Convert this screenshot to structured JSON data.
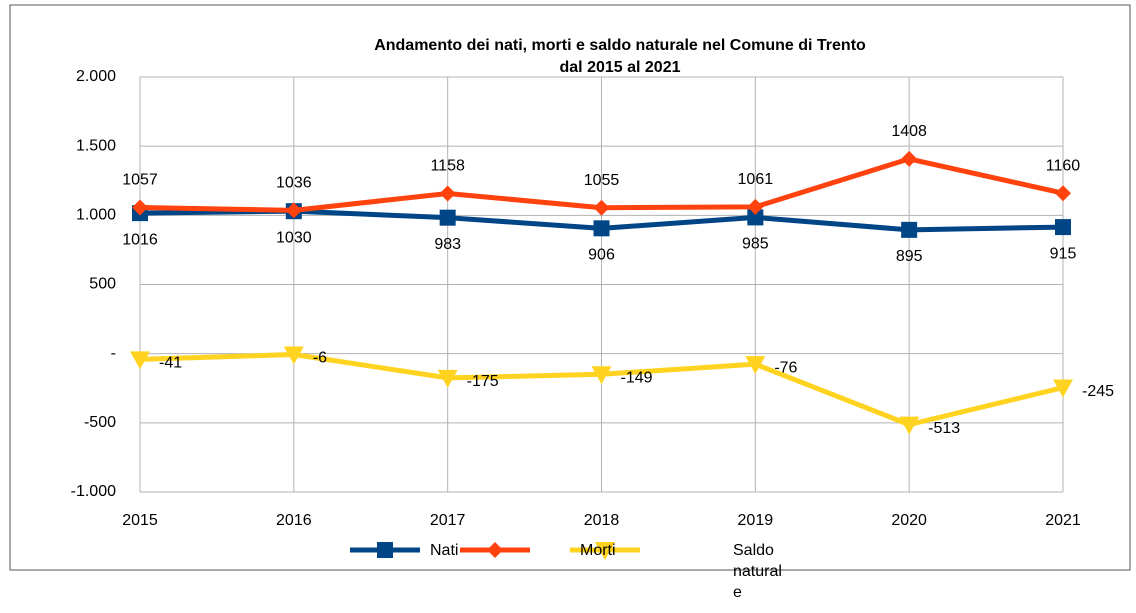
{
  "chart_data": {
    "type": "line",
    "title": [
      "Andamento dei nati, morti e saldo naturale nel Comune di Trento",
      "dal 2015 al 2021"
    ],
    "categories": [
      "2015",
      "2016",
      "2017",
      "2018",
      "2019",
      "2020",
      "2021"
    ],
    "series": [
      {
        "name": "Nati",
        "color": "#004586",
        "marker": "square",
        "label_position": "below",
        "values": [
          1016,
          1030,
          983,
          906,
          985,
          895,
          915
        ]
      },
      {
        "name": "Morti",
        "color": "#ff420e",
        "marker": "diamond",
        "label_position": "above",
        "values": [
          1057,
          1036,
          1158,
          1055,
          1061,
          1408,
          1160
        ]
      },
      {
        "name": "Saldo naturale",
        "color": "#ffd320",
        "marker": "triangle-down",
        "label_position": "right",
        "values": [
          -41,
          -6,
          -175,
          -149,
          -76,
          -513,
          -245
        ]
      }
    ],
    "ylim": [
      -1000,
      2000
    ],
    "yticks": [
      {
        "value": -1000,
        "label": "-1.000"
      },
      {
        "value": -500,
        "label": "-500"
      },
      {
        "value": 0,
        "label": "-"
      },
      {
        "value": 500,
        "label": "500"
      },
      {
        "value": 1000,
        "label": "1.000"
      },
      {
        "value": 1500,
        "label": "1.500"
      },
      {
        "value": 2000,
        "label": "2.000"
      }
    ],
    "grid": true,
    "legend": "bottom"
  }
}
